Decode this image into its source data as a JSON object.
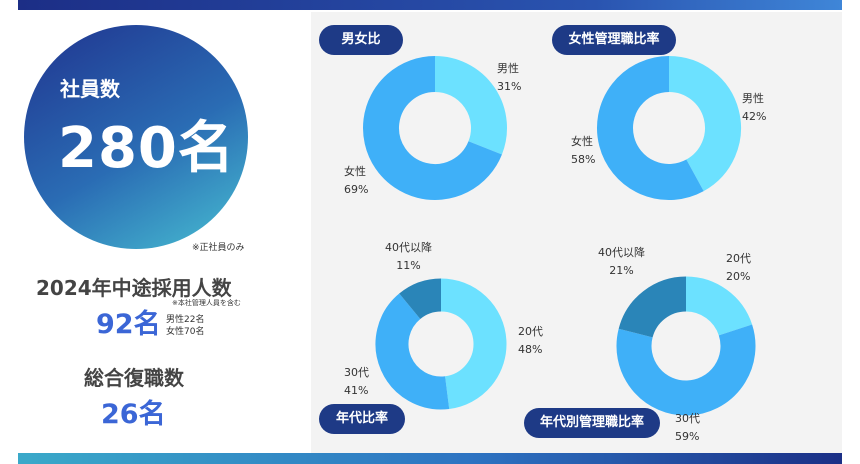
{
  "employees": {
    "label": "社員数",
    "value": "280名",
    "note": "※正社員のみ"
  },
  "hires_2024": {
    "title": "2024年中途採用人数",
    "note": "※本社管理人員を含む",
    "value": "92名",
    "male": "男性22名",
    "female": "女性70名"
  },
  "reinstatement": {
    "title": "総合復職数",
    "value": "26名"
  },
  "chart_data": [
    {
      "type": "pie",
      "title": "男女比",
      "slices": [
        {
          "label": "男性",
          "value": 31,
          "pct": "31%",
          "color": "#6ce1ff"
        },
        {
          "label": "女性",
          "value": 69,
          "pct": "69%",
          "color": "#3fb0f8"
        }
      ]
    },
    {
      "type": "pie",
      "title": "女性管理職比率",
      "slices": [
        {
          "label": "男性",
          "value": 42,
          "pct": "42%",
          "color": "#6ce1ff"
        },
        {
          "label": "女性",
          "value": 58,
          "pct": "58%",
          "color": "#3fb0f8"
        }
      ]
    },
    {
      "type": "pie",
      "title": "年代比率",
      "slices": [
        {
          "label": "20代",
          "value": 48,
          "pct": "48%",
          "color": "#6ce1ff"
        },
        {
          "label": "30代",
          "value": 41,
          "pct": "41%",
          "color": "#3fb0f8"
        },
        {
          "label": "40代以降",
          "value": 11,
          "pct": "11%",
          "color": "#2a85b8"
        }
      ]
    },
    {
      "type": "pie",
      "title": "年代別管理職比率",
      "slices": [
        {
          "label": "20代",
          "value": 20,
          "pct": "20%",
          "color": "#6ce1ff"
        },
        {
          "label": "30代",
          "value": 59,
          "pct": "59%",
          "color": "#3fb0f8"
        },
        {
          "label": "40代以降",
          "value": 21,
          "pct": "21%",
          "color": "#2a85b8"
        }
      ]
    }
  ]
}
